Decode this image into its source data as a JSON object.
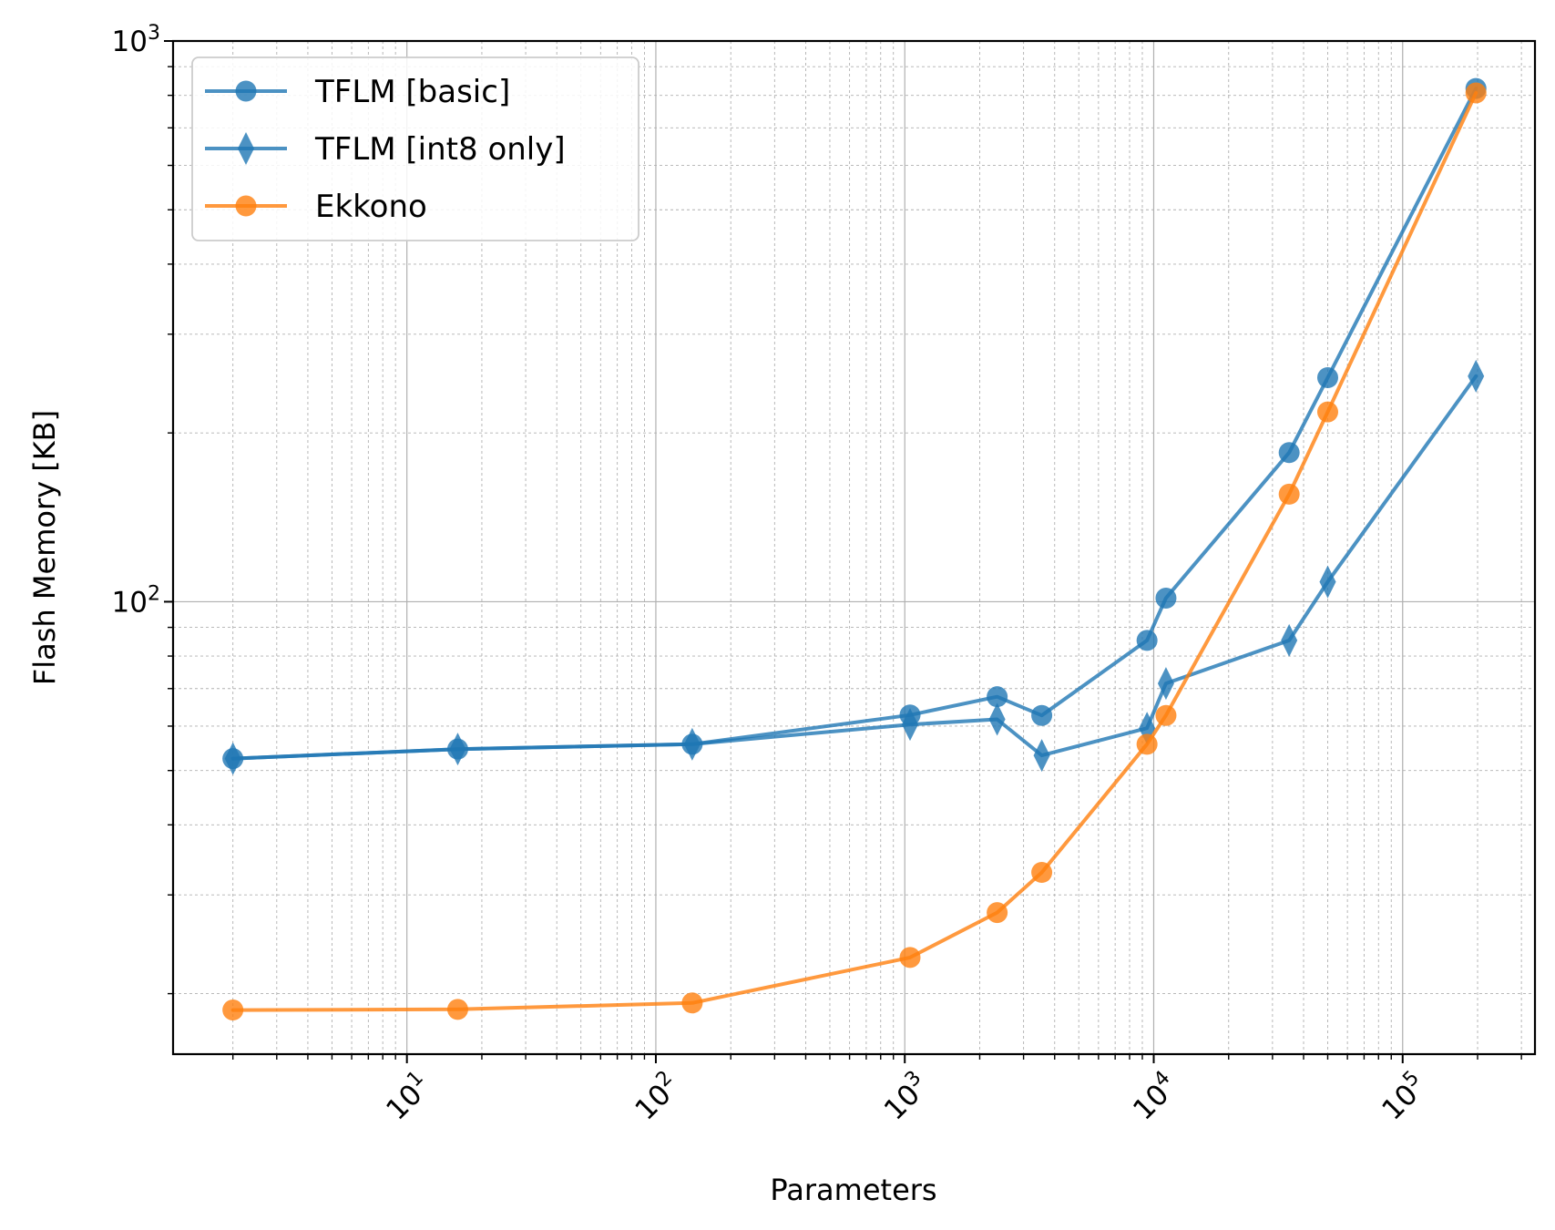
{
  "chart_data": {
    "type": "line",
    "title": "",
    "xlabel": "Parameters",
    "ylabel": "Flash Memory [KB]",
    "xscale": "log",
    "yscale": "log",
    "xlim": [
      1.15,
      340000
    ],
    "ylim": [
      15.6,
      1000
    ],
    "x_ticks": [
      {
        "value": 10,
        "base": "10",
        "exp": "1"
      },
      {
        "value": 100,
        "base": "10",
        "exp": "2"
      },
      {
        "value": 1000,
        "base": "10",
        "exp": "3"
      },
      {
        "value": 10000,
        "base": "10",
        "exp": "4"
      },
      {
        "value": 100000,
        "base": "10",
        "exp": "5"
      }
    ],
    "y_ticks": [
      {
        "value": 100,
        "base": "10",
        "exp": "2"
      },
      {
        "value": 1000,
        "base": "10",
        "exp": "3"
      }
    ],
    "grid": true,
    "legend_position": "top-left",
    "series": [
      {
        "name": "TFLM [basic]",
        "color": "#1f77b4",
        "marker": "circle",
        "x": [
          2,
          16,
          140,
          1050,
          2350,
          3550,
          9400,
          11200,
          35000,
          50000,
          197000
        ],
        "y": [
          52.5,
          54.6,
          55.7,
          62.8,
          67.7,
          62.7,
          85.3,
          101.5,
          184.5,
          251,
          823
        ]
      },
      {
        "name": "TFLM [int8 only]",
        "color": "#1f77b4",
        "marker": "diamond",
        "x": [
          2,
          16,
          140,
          1050,
          2350,
          3550,
          9400,
          11200,
          35000,
          50000,
          197000
        ],
        "y": [
          52.5,
          54.6,
          55.7,
          60.4,
          61.7,
          53.2,
          59.5,
          71.5,
          85.3,
          108.5,
          252.5
        ]
      },
      {
        "name": "Ekkono",
        "color": "#ff7f0e",
        "marker": "circle",
        "x": [
          2,
          16,
          140,
          1050,
          2350,
          3550,
          9400,
          11200,
          35000,
          50000,
          197000
        ],
        "y": [
          18.7,
          18.75,
          19.25,
          23.2,
          27.9,
          32.9,
          55.7,
          62.7,
          155.5,
          218,
          808
        ]
      }
    ]
  }
}
